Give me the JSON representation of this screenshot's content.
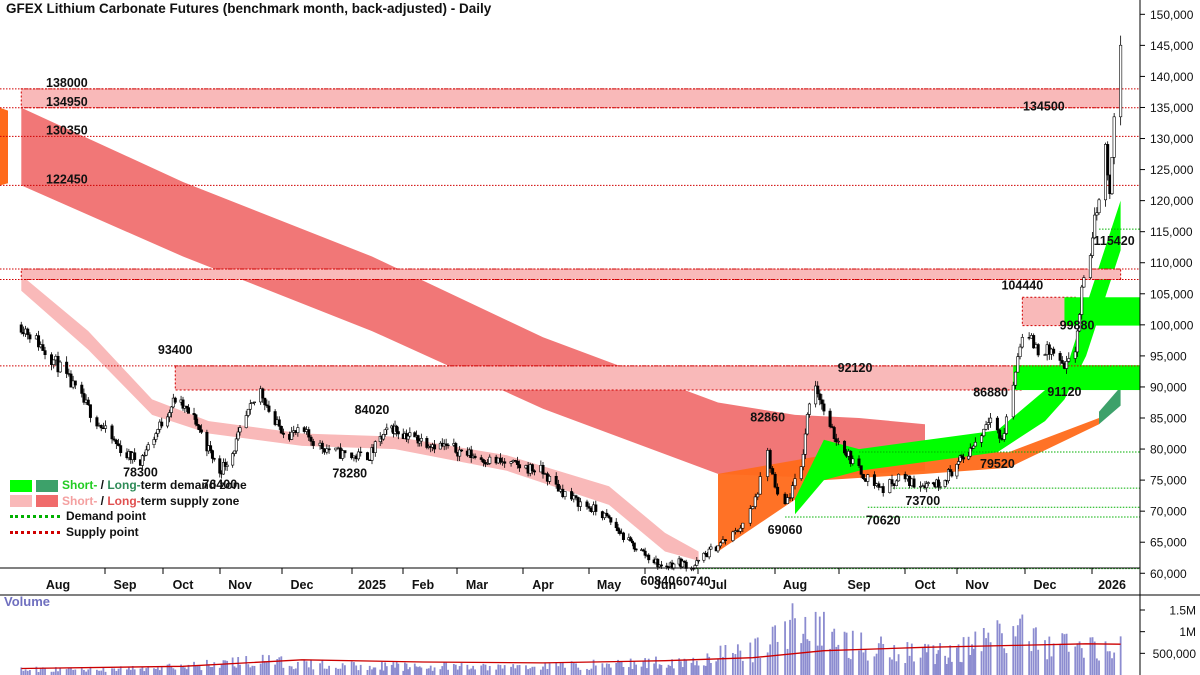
{
  "title": "GFEX Lithium Carbonate Futures (benchmark month, back-adjusted) - Daily",
  "volume_title": "Volume",
  "legend": {
    "demand": {
      "short": "Short-",
      "slash": " / ",
      "long": "Long-",
      "rest": "term demand zone"
    },
    "supply": {
      "short": "Short-",
      "slash": " / ",
      "long": "Long-",
      "rest": "term supply zone"
    },
    "demand_point": "Demand point",
    "supply_point": "Supply point"
  },
  "colors": {
    "short_demand": "#00ff00",
    "long_demand": "#3da16a",
    "short_supply": "#f9b9b9",
    "long_supply": "#f06b6b",
    "demand_point": "#00b000",
    "supply_point": "#d00000",
    "accent_orange": "#ff6a1a",
    "volume_bar": "#8c8cd0",
    "volume_ma": "#cc0000"
  },
  "chart_data": [
    {
      "type": "candlestick",
      "title": "GFEX Lithium Carbonate Futures (benchmark month, back-adjusted) - Daily",
      "x_tick_labels": [
        "Aug",
        "Sep",
        "Oct",
        "Nov",
        "Dec",
        "2025",
        "Feb",
        "Mar",
        "Apr",
        "May",
        "Jun",
        "Jul",
        "Aug",
        "Sep",
        "Oct",
        "Nov",
        "Dec",
        "2026"
      ],
      "y_tick_labels": [
        "150,000",
        "145,000",
        "140,000",
        "135,000",
        "130,000",
        "125,000",
        "120,000",
        "115,000",
        "110,000",
        "105,000",
        "100,000",
        "95,000",
        "90,000",
        "85,000",
        "80,000",
        "75,000",
        "70,000",
        "65,000",
        "60,000"
      ],
      "ylim": [
        56500,
        151500
      ],
      "supply_points": [
        138000,
        134950,
        130350,
        122450,
        109000,
        107300,
        93400
      ],
      "demand_points": [
        115420,
        79520,
        73700,
        70620,
        69060,
        60740
      ],
      "price_labels": [
        {
          "text": "138000",
          "date": "2024-08-01",
          "value": 138000
        },
        {
          "text": "134950",
          "date": "2024-08-01",
          "value": 134950
        },
        {
          "text": "130350",
          "date": "2024-08-01",
          "value": 130350
        },
        {
          "text": "122450",
          "date": "2024-08-01",
          "value": 122450
        },
        {
          "text": "93400",
          "date": "2024-09-27",
          "value": 93400
        },
        {
          "text": "78300",
          "date": "2024-09-09",
          "value": 78300
        },
        {
          "text": "76400",
          "date": "2024-10-21",
          "value": 76400
        },
        {
          "text": "84020",
          "date": "2025-01-01",
          "value": 84020
        },
        {
          "text": "78280",
          "date": "2024-12-31",
          "value": 78280
        },
        {
          "text": "82860",
          "date": "2025-07-21",
          "value": 82860
        },
        {
          "text": "92120",
          "date": "2025-08-11",
          "value": 92120
        },
        {
          "text": "69060",
          "date": "2025-07-28",
          "value": 69060
        },
        {
          "text": "70620",
          "date": "2025-09-12",
          "value": 70620
        },
        {
          "text": "73700",
          "date": "2025-09-30",
          "value": 73700
        },
        {
          "text": "79520",
          "date": "2025-11-10",
          "value": 79520
        },
        {
          "text": "86880",
          "date": "2025-11-07",
          "value": 86880
        },
        {
          "text": "104440",
          "date": "2025-11-21",
          "value": 104440
        },
        {
          "text": "99880",
          "date": "2025-12-05",
          "value": 99880
        },
        {
          "text": "91120",
          "date": "2025-12-10",
          "value": 91120
        },
        {
          "text": "115420",
          "date": "2026-01-02",
          "value": 115420
        },
        {
          "text": "134500",
          "date": "2025-12-19",
          "value": 134500
        },
        {
          "text": "60840",
          "date": "2025-05-28",
          "value": 60840
        },
        {
          "text": "60740",
          "date": "2025-06-17",
          "value": 60740
        }
      ],
      "close_path": [
        [
          "2024-07-15",
          100000
        ],
        [
          "2024-07-22",
          97500
        ],
        [
          "2024-08-01",
          93500
        ],
        [
          "2024-08-09",
          89500
        ],
        [
          "2024-08-19",
          84500
        ],
        [
          "2024-08-26",
          81500
        ],
        [
          "2024-09-02",
          79000
        ],
        [
          "2024-09-09",
          78300
        ],
        [
          "2024-09-16",
          82000
        ],
        [
          "2024-09-23",
          86000
        ],
        [
          "2024-09-27",
          88000
        ],
        [
          "2024-10-08",
          84500
        ],
        [
          "2024-10-14",
          80500
        ],
        [
          "2024-10-21",
          76400
        ],
        [
          "2024-10-28",
          79500
        ],
        [
          "2024-11-04",
          85000
        ],
        [
          "2024-11-11",
          89500
        ],
        [
          "2024-11-18",
          84000
        ],
        [
          "2024-11-25",
          82500
        ],
        [
          "2024-12-02",
          82500
        ],
        [
          "2024-12-09",
          80500
        ],
        [
          "2024-12-16",
          79500
        ],
        [
          "2024-12-23",
          78800
        ],
        [
          "2024-12-31",
          79000
        ],
        [
          "2025-01-06",
          81500
        ],
        [
          "2025-01-13",
          83500
        ],
        [
          "2025-01-20",
          82500
        ],
        [
          "2025-02-05",
          81000
        ],
        [
          "2025-02-17",
          80000
        ],
        [
          "2025-03-03",
          78500
        ],
        [
          "2025-03-17",
          77500
        ],
        [
          "2025-03-31",
          76500
        ],
        [
          "2025-04-07",
          74000
        ],
        [
          "2025-04-14",
          72000
        ],
        [
          "2025-04-28",
          69500
        ],
        [
          "2025-05-12",
          65000
        ],
        [
          "2025-05-26",
          62000
        ],
        [
          "2025-05-30",
          61000
        ],
        [
          "2025-06-09",
          61800
        ],
        [
          "2025-06-17",
          61000
        ],
        [
          "2025-06-24",
          63000
        ],
        [
          "2025-07-01",
          64500
        ],
        [
          "2025-07-08",
          66500
        ],
        [
          "2025-07-15",
          70500
        ],
        [
          "2025-07-21",
          79000
        ],
        [
          "2025-07-25",
          72000
        ],
        [
          "2025-07-28",
          71000
        ],
        [
          "2025-08-04",
          77000
        ],
        [
          "2025-08-08",
          88000
        ],
        [
          "2025-08-11",
          90500
        ],
        [
          "2025-08-18",
          83000
        ],
        [
          "2025-08-25",
          80000
        ],
        [
          "2025-09-01",
          76500
        ],
        [
          "2025-09-08",
          74500
        ],
        [
          "2025-09-12",
          73500
        ],
        [
          "2025-09-19",
          75500
        ],
        [
          "2025-09-26",
          74500
        ],
        [
          "2025-10-09",
          74500
        ],
        [
          "2025-10-17",
          76500
        ],
        [
          "2025-10-27",
          79500
        ],
        [
          "2025-11-03",
          82500
        ],
        [
          "2025-11-07",
          86000
        ],
        [
          "2025-11-12",
          81000
        ],
        [
          "2025-11-17",
          90500
        ],
        [
          "2025-11-21",
          99000
        ],
        [
          "2025-11-28",
          96000
        ],
        [
          "2025-12-05",
          95500
        ],
        [
          "2025-12-10",
          92500
        ],
        [
          "2025-12-15",
          96000
        ],
        [
          "2025-12-18",
          105000
        ],
        [
          "2025-12-22",
          112000
        ],
        [
          "2025-12-26",
          121000
        ],
        [
          "2025-12-29",
          128000
        ],
        [
          "2025-12-31",
          122000
        ],
        [
          "2026-01-02",
          133000
        ],
        [
          "2026-01-05",
          145500
        ]
      ],
      "long_term_supply_zone": {
        "upper": [
          [
            "2024-07-15",
            134950
          ],
          [
            "2024-10-01",
            123000
          ],
          [
            "2025-01-01",
            111000
          ],
          [
            "2025-04-01",
            98000
          ],
          [
            "2025-07-01",
            87500
          ],
          [
            "2025-08-01",
            85500
          ],
          [
            "2025-09-01",
            85000
          ],
          [
            "2025-10-01",
            84000
          ]
        ],
        "lower": [
          [
            "2024-07-15",
            122450
          ],
          [
            "2024-10-01",
            111000
          ],
          [
            "2025-01-01",
            99000
          ],
          [
            "2025-04-01",
            86500
          ],
          [
            "2025-07-01",
            76000
          ],
          [
            "2025-08-01",
            75500
          ],
          [
            "2025-09-01",
            76000
          ],
          [
            "2025-10-01",
            76500
          ]
        ]
      },
      "short_term_supply_zone": {
        "upper": [
          [
            "2024-07-15",
            108000
          ],
          [
            "2024-08-15",
            99000
          ],
          [
            "2024-09-15",
            88000
          ],
          [
            "2024-10-15",
            84500
          ],
          [
            "2024-12-01",
            82500
          ],
          [
            "2025-01-15",
            82000
          ],
          [
            "2025-03-15",
            79000
          ],
          [
            "2025-05-01",
            74000
          ],
          [
            "2025-06-01",
            66500
          ],
          [
            "2025-06-20",
            63500
          ]
        ],
        "lower": [
          [
            "2024-07-15",
            105500
          ],
          [
            "2024-08-15",
            96000
          ],
          [
            "2024-09-15",
            85500
          ],
          [
            "2024-10-15",
            82500
          ],
          [
            "2024-12-01",
            80500
          ],
          [
            "2025-01-15",
            80000
          ],
          [
            "2025-03-15",
            76500
          ],
          [
            "2025-05-01",
            71000
          ],
          [
            "2025-06-01",
            63500
          ],
          [
            "2025-06-20",
            62000
          ]
        ]
      },
      "short_term_demand_zone": {
        "upper": [
          [
            "2025-08-01",
            72000
          ],
          [
            "2025-08-15",
            81500
          ],
          [
            "2025-09-01",
            80000
          ],
          [
            "2025-11-10",
            83000
          ],
          [
            "2025-12-01",
            89500
          ],
          [
            "2025-12-10",
            92000
          ],
          [
            "2025-12-20",
            103000
          ],
          [
            "2026-01-05",
            120000
          ]
        ],
        "lower": [
          [
            "2025-08-01",
            69500
          ],
          [
            "2025-08-15",
            75000
          ],
          [
            "2025-09-01",
            76500
          ],
          [
            "2025-11-10",
            79500
          ],
          [
            "2025-12-01",
            84500
          ],
          [
            "2025-12-10",
            88000
          ],
          [
            "2025-12-20",
            95000
          ],
          [
            "2026-01-05",
            112000
          ]
        ]
      },
      "long_term_demand_zone": {
        "upper": [
          [
            "2025-12-26",
            86000
          ],
          [
            "2026-01-05",
            90000
          ]
        ],
        "lower": [
          [
            "2025-12-26",
            84000
          ],
          [
            "2026-01-05",
            87000
          ]
        ]
      },
      "supply_rectangles": [
        {
          "from": "2024-07-15",
          "to": "2026-01-05",
          "low": 134950,
          "high": 138000
        },
        {
          "from": "2024-07-15",
          "to": "2026-01-05",
          "low": 107300,
          "high": 109000
        },
        {
          "from": "2024-09-27",
          "to": "2025-11-21",
          "low": 89500,
          "high": 93400
        },
        {
          "from": "2025-11-21",
          "to": "2025-12-15",
          "low": 99880,
          "high": 104440
        }
      ],
      "demand_rectangles": [
        {
          "from": "2025-11-17",
          "to": "2026-01-15",
          "low": 89500,
          "high": 93500
        },
        {
          "from": "2025-12-10",
          "to": "2026-01-15",
          "low": 99880,
          "high": 104440
        }
      ]
    },
    {
      "type": "bar",
      "title": "Volume",
      "y_tick_labels": [
        "1.5M",
        "1M",
        "500,000"
      ],
      "ylim": [
        0,
        1800000
      ],
      "volume_path": [
        [
          "2024-07-15",
          130000
        ],
        [
          "2024-08-15",
          140000
        ],
        [
          "2024-09-15",
          160000
        ],
        [
          "2024-10-08",
          230000
        ],
        [
          "2024-11-08",
          350000
        ],
        [
          "2024-12-01",
          260000
        ],
        [
          "2025-01-01",
          220000
        ],
        [
          "2025-03-01",
          190000
        ],
        [
          "2025-04-01",
          220000
        ],
        [
          "2025-05-15",
          280000
        ],
        [
          "2025-06-15",
          330000
        ],
        [
          "2025-07-21",
          650000
        ],
        [
          "2025-07-25",
          1300000
        ],
        [
          "2025-08-11",
          1100000
        ],
        [
          "2025-09-01",
          700000
        ],
        [
          "2025-10-15",
          520000
        ],
        [
          "2025-11-17",
          1050000
        ],
        [
          "2025-12-01",
          780000
        ],
        [
          "2025-12-20",
          700000
        ],
        [
          "2026-01-05",
          650000
        ]
      ],
      "ma_path": [
        [
          "2024-07-15",
          150000
        ],
        [
          "2024-10-01",
          200000
        ],
        [
          "2024-12-01",
          350000
        ],
        [
          "2025-02-01",
          300000
        ],
        [
          "2025-04-01",
          280000
        ],
        [
          "2025-06-01",
          330000
        ],
        [
          "2025-07-15",
          400000
        ],
        [
          "2025-08-15",
          560000
        ],
        [
          "2025-10-01",
          640000
        ],
        [
          "2025-11-15",
          680000
        ],
        [
          "2025-12-20",
          720000
        ],
        [
          "2026-01-05",
          710000
        ]
      ]
    }
  ]
}
